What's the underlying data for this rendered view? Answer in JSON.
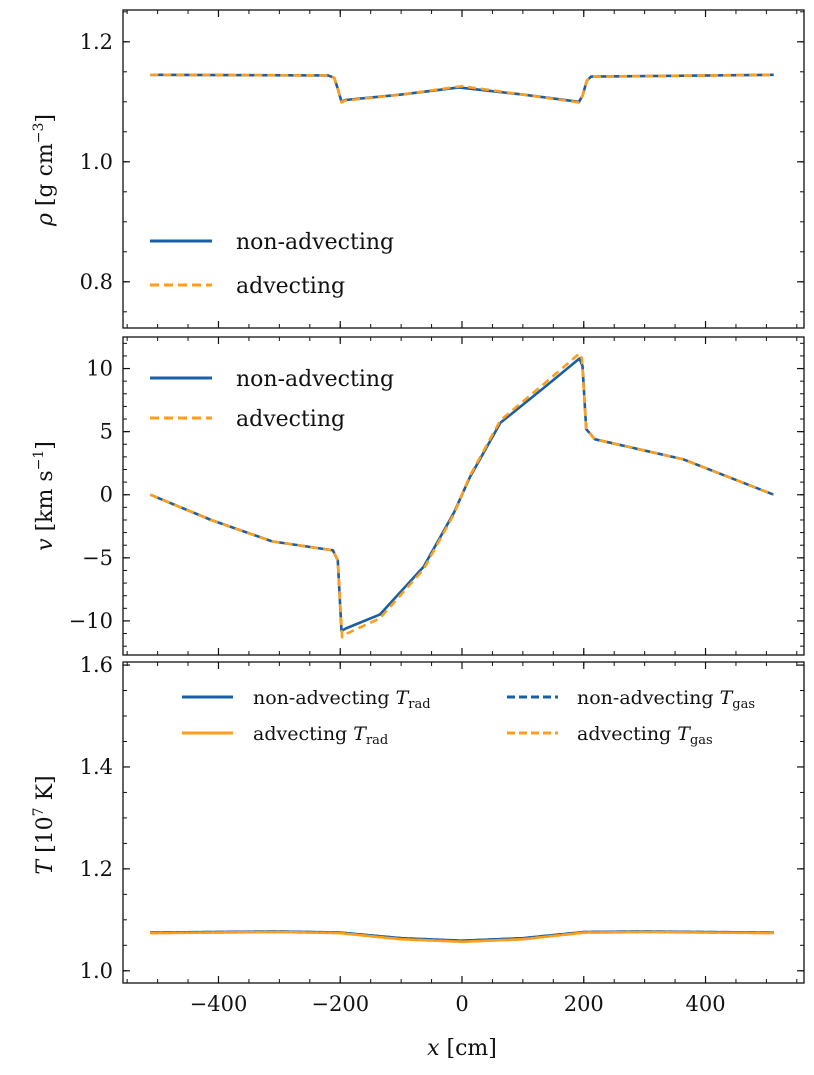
{
  "colors": {
    "non_advecting": "#1a5fa6",
    "advecting": "#ff9d1c"
  },
  "chart_data": [
    {
      "type": "line",
      "ylabel": {
        "var": "ρ",
        "unit": " [g cm",
        "exp": "−3",
        "close": "]"
      },
      "ylim": [
        0.723,
        1.253
      ],
      "xlim": [
        -560,
        560
      ],
      "yticks": [
        0.8,
        1.0,
        1.2
      ],
      "ytick_labels": [
        "0.8",
        "1.0",
        "1.2"
      ],
      "yminor_step": 0.05,
      "legend": {
        "placement": "lower-left",
        "entries": [
          "non-advecting",
          "advecting"
        ]
      },
      "series": [
        {
          "name": "non-advecting",
          "style": "solid",
          "color": "#1a5fa6",
          "x": [
            -512,
            -220,
            -210,
            -205,
            -198,
            -192,
            -100,
            -5,
            100,
            192,
            198,
            205,
            212,
            512
          ],
          "y": [
            1.145,
            1.144,
            1.14,
            1.125,
            1.1,
            1.103,
            1.112,
            1.124,
            1.112,
            1.1,
            1.11,
            1.135,
            1.142,
            1.145
          ]
        },
        {
          "name": "advecting",
          "style": "dashed",
          "color": "#ff9d1c",
          "x": [
            -512,
            -220,
            -210,
            -205,
            -198,
            -192,
            -100,
            0,
            100,
            192,
            198,
            205,
            212,
            512
          ],
          "y": [
            1.145,
            1.144,
            1.14,
            1.125,
            1.099,
            1.102,
            1.112,
            1.126,
            1.112,
            1.099,
            1.11,
            1.135,
            1.142,
            1.145
          ]
        }
      ]
    },
    {
      "type": "line",
      "ylabel": {
        "var": "v",
        "unit": " [km s",
        "exp": "−1",
        "close": "]"
      },
      "ylim": [
        -12.7,
        12.5
      ],
      "xlim": [
        -560,
        560
      ],
      "yticks": [
        -10,
        -5,
        0,
        5,
        10
      ],
      "ytick_labels": [
        "−10",
        "−5",
        "0",
        "5",
        "10"
      ],
      "yminor_step": 1,
      "legend": {
        "placement": "upper-left",
        "entries": [
          "non-advecting",
          "advecting"
        ]
      },
      "series": [
        {
          "name": "non-advecting",
          "style": "solid",
          "color": "#1a5fa6",
          "x": [
            -512,
            -412,
            -312,
            -220,
            -212,
            -204,
            -198,
            -191,
            -135,
            -63,
            -13,
            0,
            13,
            63,
            135,
            193,
            198,
            204,
            218,
            364,
            512
          ],
          "y": [
            0,
            -2.0,
            -3.7,
            -4.35,
            -4.4,
            -5.2,
            -10.8,
            -10.6,
            -9.5,
            -5.7,
            -1.4,
            0,
            1.4,
            5.7,
            8.5,
            10.8,
            10.2,
            5.2,
            4.4,
            2.8,
            0
          ]
        },
        {
          "name": "advecting",
          "style": "dashed",
          "color": "#ff9d1c",
          "x": [
            -512,
            -412,
            -312,
            -220,
            -212,
            -204,
            -197,
            -189,
            -135,
            -63,
            -13,
            0,
            13,
            63,
            135,
            193,
            197,
            204,
            218,
            364,
            512
          ],
          "y": [
            0,
            -2.0,
            -3.7,
            -4.35,
            -4.4,
            -5.2,
            -11.3,
            -11.0,
            -9.8,
            -5.9,
            -1.5,
            0,
            1.5,
            5.9,
            8.8,
            11.2,
            10.8,
            5.2,
            4.4,
            2.8,
            0
          ]
        }
      ]
    },
    {
      "type": "line",
      "ylabel": {
        "var": "T",
        "unit": " [10",
        "exp": "7",
        "close": " K]"
      },
      "xlabel": {
        "var": "x",
        "unit": " [cm]"
      },
      "ylim": [
        0.976,
        1.606
      ],
      "xlim": [
        -560,
        560
      ],
      "xticks": [
        -400,
        -200,
        0,
        200,
        400
      ],
      "xtick_labels": [
        "−400",
        "−200",
        "0",
        "200",
        "400"
      ],
      "xminor_step": 50,
      "yticks": [
        1.0,
        1.2,
        1.4,
        1.6
      ],
      "ytick_labels": [
        "1.0",
        "1.2",
        "1.4",
        "1.6"
      ],
      "yminor_step": 0.05,
      "legend": {
        "placement": "upper-center",
        "columns": 2,
        "entries": [
          {
            "text": "non-advecting ",
            "var": "T",
            "sub": "rad"
          },
          {
            "text": "advecting ",
            "var": "T",
            "sub": "rad"
          },
          {
            "text": "non-advecting ",
            "var": "T",
            "sub": "gas"
          },
          {
            "text": "advecting ",
            "var": "T",
            "sub": "gas"
          }
        ]
      },
      "series": [
        {
          "name": "non-advecting T_rad",
          "style": "solid",
          "color": "#1a5fa6",
          "x": [
            -512,
            -300,
            -200,
            -100,
            0,
            100,
            200,
            300,
            512
          ],
          "y": [
            1.075,
            1.077,
            1.075,
            1.064,
            1.059,
            1.064,
            1.076,
            1.077,
            1.075
          ]
        },
        {
          "name": "advecting T_rad",
          "style": "solid",
          "color": "#ff9d1c",
          "x": [
            -512,
            -300,
            -200,
            -100,
            0,
            100,
            200,
            300,
            512
          ],
          "y": [
            1.074,
            1.076,
            1.074,
            1.062,
            1.057,
            1.062,
            1.075,
            1.076,
            1.074
          ]
        },
        {
          "name": "non-advecting T_gas",
          "style": "dashed",
          "color": "#1a5fa6",
          "x": [
            -512,
            -300,
            -200,
            -100,
            0,
            100,
            200,
            300,
            512
          ],
          "y": [
            1.075,
            1.077,
            1.075,
            1.064,
            1.059,
            1.064,
            1.076,
            1.077,
            1.075
          ]
        },
        {
          "name": "advecting T_gas",
          "style": "dashed",
          "color": "#ff9d1c",
          "x": [
            -512,
            -300,
            -200,
            -100,
            0,
            100,
            200,
            300,
            512
          ],
          "y": [
            1.074,
            1.076,
            1.074,
            1.062,
            1.057,
            1.062,
            1.075,
            1.076,
            1.074
          ]
        }
      ]
    }
  ]
}
